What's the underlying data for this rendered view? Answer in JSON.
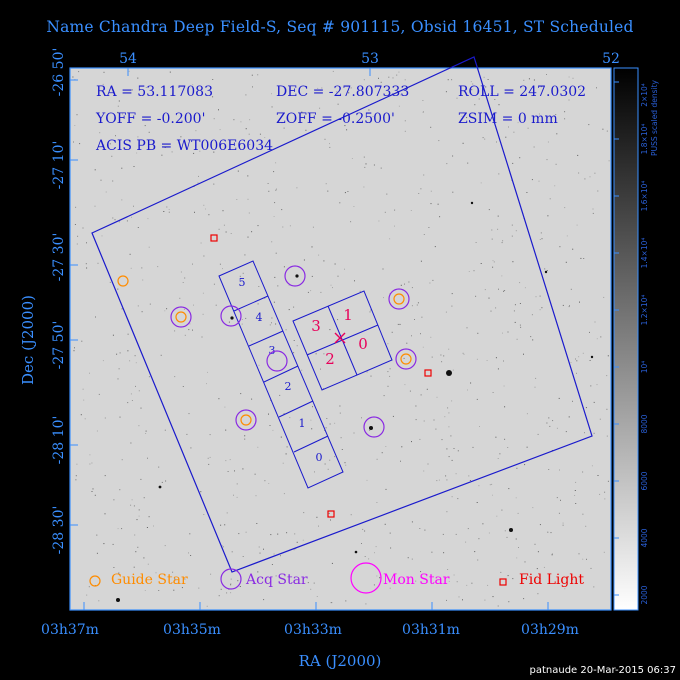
{
  "title": "Name Chandra Deep Field-S, Seq # 901115, Obsid 16451, ST Scheduled",
  "info": {
    "ra": "RA = 53.117083",
    "dec": "DEC = -27.807333",
    "roll": "ROLL = 247.0302",
    "yoff": "YOFF = -0.200'",
    "zoff": "ZOFF = -0.2500'",
    "zsim": "ZSIM = 0 mm",
    "acis_pb": "ACIS PB = WT006E6034"
  },
  "axes": {
    "top_ticks": [
      "54",
      "53",
      "52"
    ],
    "bottom_ticks": [
      "03h37m",
      "03h35m",
      "03h33m",
      "03h31m",
      "03h29m"
    ],
    "left_ticks": [
      "-26 50'",
      "-27 10'",
      "-27 30'",
      "-27 50'",
      "-28 10'",
      "-28 30'"
    ],
    "xlabel": "RA (J2000)",
    "ylabel": "Dec (J2000)"
  },
  "colorbar": {
    "label": "PUSS scaled density",
    "ticks": [
      "2000",
      "4000",
      "6000",
      "8000",
      "10⁴",
      "1.2×10⁴",
      "1.4×10⁴",
      "1.6×10⁴",
      "1.8×10⁴",
      "2×10⁴"
    ]
  },
  "ccd_labels": {
    "s_chips": [
      "5",
      "4",
      "3",
      "2",
      "1",
      "0"
    ],
    "i_chips": [
      "1",
      "3",
      "0",
      "2"
    ]
  },
  "legend": {
    "guide": "Guide Star",
    "acq": "Acq Star",
    "mon": "Mon Star",
    "fid": "Fid Light"
  },
  "colors": {
    "axis_text": "#3a8fff",
    "ccd_outline": "#1a1acc",
    "guide": "#ff8c00",
    "acq": "#8a2be2",
    "mon": "#ff00ff",
    "fid": "#ee0000",
    "i_chip_label": "#e8005a"
  },
  "stamp": "patnaude 20-Mar-2015 06:37"
}
